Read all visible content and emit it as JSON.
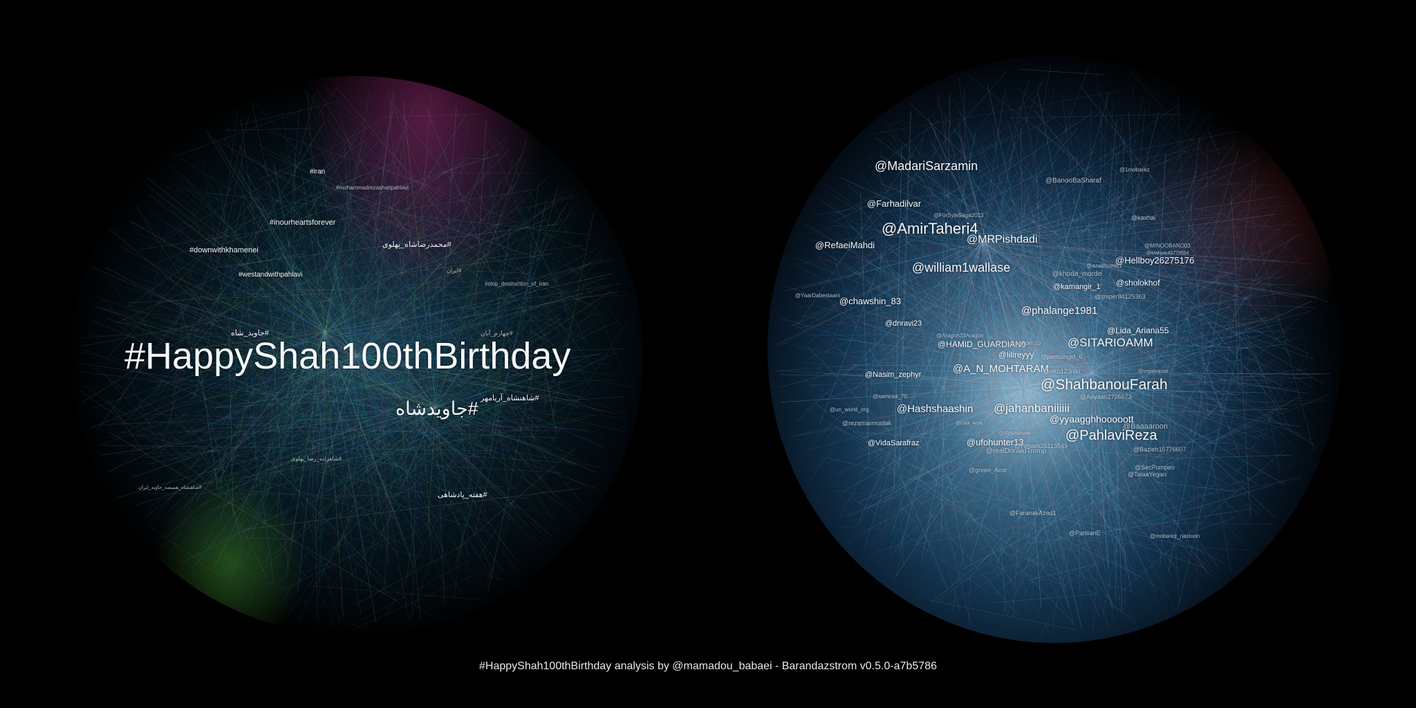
{
  "hashtag_graph": {
    "labels": [
      "#HappyShah100thBirthday",
      "#جاویدشاه",
      "#inourheartsforever",
      "#downwithkhamenei",
      "#westandwithpahlavi",
      "#iran",
      "#mohammadrezashahpahlavi",
      "#محمدرضاشاه_پهلوی",
      "#جاوید_شاه",
      "#شاهنشاه_آریامهر",
      "#هفته_پادشاهی",
      "#چهارم_آبان",
      "#stop_destruction_of_iran",
      "#ایران",
      "#شاهزاده_رضا_پهلوی",
      "#شاهنشاه_همیشه_جاوید_ایران"
    ]
  },
  "user_graph": {
    "labels": [
      "@MadariSarzamin",
      "@Farhadilvar",
      "@AmirTaheri4",
      "@MRPishdadi",
      "@RefaeiMahdi",
      "@william1wallase",
      "@chawshin_83",
      "@phalange1981",
      "@dnravi23",
      "@SITARIOAMM",
      "@HAMID_GUARDIAN0",
      "@A_N_MOHTARAM",
      "@ShahbanouFarah",
      "@Hashshaashin",
      "@jahanbaniiiiii",
      "@yyaagghhooooott",
      "@PahlaviReza",
      "@ufohunter13",
      "@VidaSarafraz",
      "@Hellboy26275176",
      "@sholokhof",
      "@kamangir_1",
      "@Lida_Ariana55",
      "@Nasim_zephyr",
      "@lilireyyy",
      "@BanooBaSharaf",
      "@khoda_morde",
      "@rezamarmuolak",
      "@realDonaldTrump",
      "@Baaaaroon",
      "@Bazieh15776607",
      "@TalaaYegan",
      "@Ariyaa62726673",
      "@niko123niki",
      "@persiangirl_6",
      "@ForSyteSaga2013",
      "@YaarDabestaani",
      "@kaxhal",
      "@1mobarez",
      "@Hesam25113549",
      "@sniper84125363",
      "@azadhomi81",
      "@Aragon33Aragon",
      "@saiedeh10",
      "@SecPompeo",
      "@green_Amir",
      "@MINOOBANO03",
      "@un_world_org",
      "@FaranakAzad1",
      "@PartiianE",
      "@mobarez_nastooh",
      "@Roshanaei",
      "@samiraa_70",
      "@Lala_Arya",
      "@Mahyar45779554",
      "@sepahrasad"
    ]
  },
  "footer": {
    "caption": "#HappyShah100thBirthday analysis by @mamadou_babaei - Barandazstrom v0.5.0-a7b5786"
  }
}
